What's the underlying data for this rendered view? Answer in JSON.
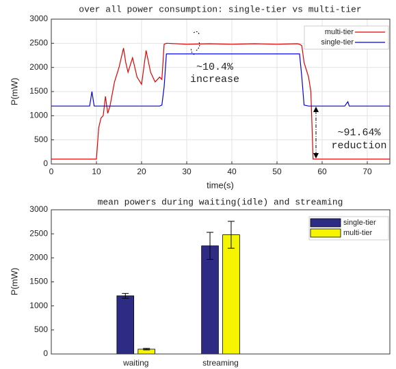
{
  "chart_data": [
    {
      "type": "line",
      "title": "over all power consumption: single-tier vs multi-tier",
      "xlabel": "time(s)",
      "ylabel": "P(mW)",
      "x": [
        0,
        5,
        8.5,
        9,
        9.5,
        10,
        10.5,
        11,
        11.5,
        12,
        12.5,
        13,
        14,
        15,
        16,
        16.5,
        17,
        18,
        19,
        20,
        21,
        22,
        23,
        24,
        24.5,
        25,
        25.5,
        30,
        35,
        40,
        45,
        50,
        54.5,
        55,
        55.5,
        56,
        57,
        57.5,
        58,
        60,
        65,
        65.7,
        66,
        70,
        75
      ],
      "series": [
        {
          "name": "multi-tier",
          "color": "#e00000",
          "values": [
            100,
            100,
            100,
            100,
            100,
            100,
            750,
            950,
            1000,
            1400,
            1050,
            1200,
            1700,
            2000,
            2400,
            2100,
            1900,
            2200,
            1800,
            1650,
            2350,
            1900,
            1700,
            1800,
            1750,
            2480,
            2500,
            2480,
            2490,
            2480,
            2490,
            2480,
            2490,
            2480,
            2450,
            2100,
            1800,
            1500,
            100,
            100,
            100,
            100,
            100,
            100,
            100
          ]
        },
        {
          "name": "single-tier",
          "color": "#0000e0",
          "values": [
            1200,
            1200,
            1200,
            1500,
            1200,
            1200,
            1200,
            1200,
            1200,
            1200,
            1200,
            1200,
            1200,
            1200,
            1200,
            1200,
            1200,
            1200,
            1200,
            1200,
            1200,
            1200,
            1200,
            1200,
            1220,
            1600,
            2280,
            2280,
            2280,
            2280,
            2280,
            2280,
            2280,
            2280,
            1800,
            1220,
            1200,
            1200,
            1200,
            1200,
            1200,
            1290,
            1200,
            1200,
            1200
          ]
        }
      ],
      "xlim": [
        0,
        75
      ],
      "xticks": [
        0,
        10,
        20,
        30,
        40,
        50,
        60,
        70
      ],
      "ylim": [
        0,
        3000
      ],
      "yticks": [
        0,
        500,
        1000,
        1500,
        2000,
        2500,
        3000
      ],
      "grid": true,
      "legend": "upper right",
      "annotations": [
        "~10.4%",
        "increase",
        "~91.64%",
        "reduction"
      ]
    },
    {
      "type": "bar",
      "title": "mean powers during waiting(idle) and streaming",
      "ylabel": "P(mW)",
      "categories": [
        "waiting",
        "streaming"
      ],
      "series": [
        {
          "name": "single-tier",
          "color": "#2e2b85",
          "values": [
            1210,
            2250
          ],
          "errors": [
            50,
            280
          ]
        },
        {
          "name": "multi-tier",
          "color": "#f5f500",
          "values": [
            100,
            2480
          ],
          "errors": [
            15,
            280
          ]
        }
      ],
      "ylim": [
        0,
        3000
      ],
      "yticks": [
        0,
        500,
        1000,
        1500,
        2000,
        2500,
        3000
      ],
      "grid": false,
      "legend": "upper right"
    }
  ]
}
